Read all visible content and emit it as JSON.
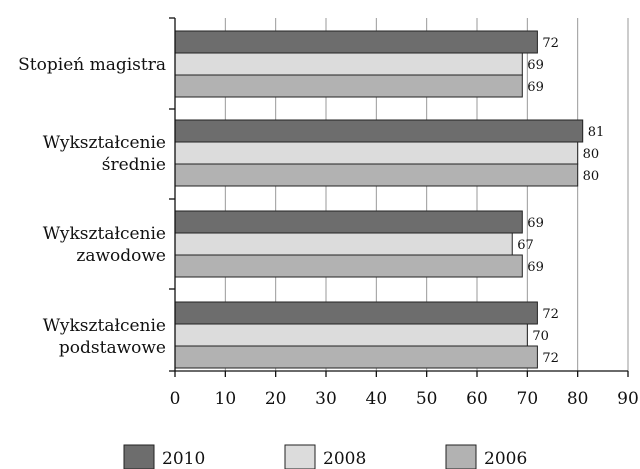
{
  "chart_data": {
    "type": "bar",
    "orientation": "horizontal",
    "categories": [
      [
        "Stopień magistra"
      ],
      [
        "Wykształcenie",
        "średnie"
      ],
      [
        "Wykształcenie",
        "zawodowe"
      ],
      [
        "Wykształcenie",
        "podstawowe"
      ]
    ],
    "series": [
      {
        "name": "2010",
        "values": [
          72,
          81,
          69,
          72
        ],
        "color": "#6d6d6d"
      },
      {
        "name": "2008",
        "values": [
          69,
          80,
          67,
          70
        ],
        "color": "#dcdcdc"
      },
      {
        "name": "2006",
        "values": [
          69,
          80,
          69,
          72
        ],
        "color": "#b2b2b2"
      }
    ],
    "xlim": [
      0,
      90
    ],
    "xticks": [
      0,
      10,
      20,
      30,
      40,
      50,
      60,
      70,
      80,
      90
    ],
    "grid": "vertical",
    "legend_position": "bottom"
  }
}
